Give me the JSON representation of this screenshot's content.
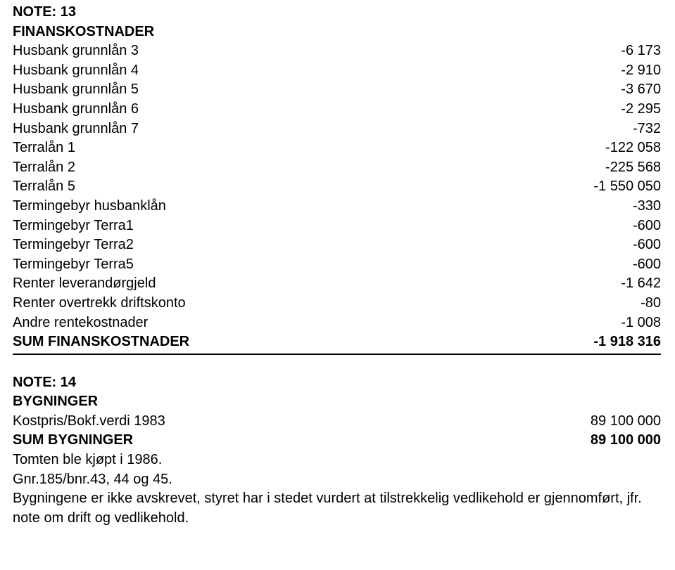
{
  "colors": {
    "text": "#000000",
    "background": "#ffffff",
    "divider": "#000000"
  },
  "typography": {
    "font_family": "Arial, Helvetica, sans-serif",
    "font_size_pt": 15,
    "line_height": 1.38
  },
  "note13": {
    "heading1": "NOTE: 13",
    "heading2": "FINANSKOSTNADER",
    "rows": [
      {
        "label": "Husbank grunnlån 3",
        "value": "-6 173"
      },
      {
        "label": "Husbank grunnlån 4",
        "value": "-2 910"
      },
      {
        "label": "Husbank grunnlån 5",
        "value": "-3 670"
      },
      {
        "label": "Husbank grunnlån 6",
        "value": "-2 295"
      },
      {
        "label": "Husbank grunnlån 7",
        "value": "-732"
      },
      {
        "label": "Terralån 1",
        "value": "-122 058"
      },
      {
        "label": "Terralån 2",
        "value": "-225 568"
      },
      {
        "label": "Terralån 5",
        "value": "-1 550 050"
      },
      {
        "label": "Termingebyr husbanklån",
        "value": "-330"
      },
      {
        "label": "Termingebyr Terra1",
        "value": "-600"
      },
      {
        "label": "Termingebyr Terra2",
        "value": "-600"
      },
      {
        "label": "Termingebyr Terra5",
        "value": "-600"
      },
      {
        "label": "Renter leverandørgjeld",
        "value": "-1 642"
      },
      {
        "label": "Renter overtrekk driftskonto",
        "value": "-80"
      },
      {
        "label": "Andre rentekostnader",
        "value": "-1 008"
      }
    ],
    "sum": {
      "label": "SUM FINANSKOSTNADER",
      "value": "-1 918 316"
    }
  },
  "note14": {
    "heading1": "NOTE: 14",
    "heading2": "BYGNINGER",
    "rows": [
      {
        "label": "Kostpris/Bokf.verdi 1983",
        "value": "89 100 000"
      }
    ],
    "sum": {
      "label": "SUM BYGNINGER",
      "value": "89 100 000"
    },
    "after_lines": [
      "Tomten ble kjøpt i 1986.",
      "Gnr.185/bnr.43, 44 og 45."
    ],
    "paragraph": "Bygningene er ikke avskrevet, styret har i stedet vurdert at tilstrekkelig vedlikehold er gjennomført, jfr. note om drift og vedlikehold."
  }
}
